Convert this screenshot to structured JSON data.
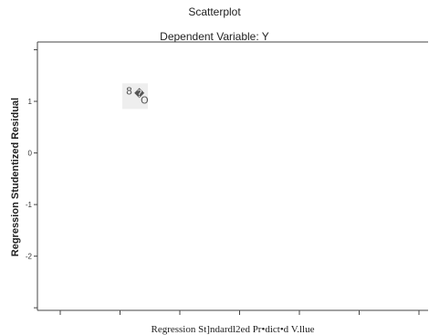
{
  "chart_data": {
    "type": "scatter",
    "title": "Scatterplot",
    "subtitle": "Dependent Variable: Y",
    "xlabel": "Regression St]ndardl2ed Pr•dict•d V.llue",
    "ylabel": "Regression Studentized Residual",
    "ylim": [
      -3.05,
      2.15
    ],
    "yticks": [
      1,
      0,
      -1,
      -2
    ],
    "xtick_count": 7,
    "xtick_labels": [],
    "grid": false,
    "legend": "none",
    "points": [
      {
        "x": null,
        "y": 1.1,
        "glyph": "8",
        "color": "#555555"
      },
      {
        "x": null,
        "y": 1.1,
        "glyph": "�",
        "color": "#555555"
      },
      {
        "x": null,
        "y": 1.1,
        "glyph": "O",
        "color": "#555555"
      }
    ],
    "colors": {
      "frame": "#444444",
      "marker": "#555555",
      "marker_bg": "#eeeeee"
    }
  }
}
